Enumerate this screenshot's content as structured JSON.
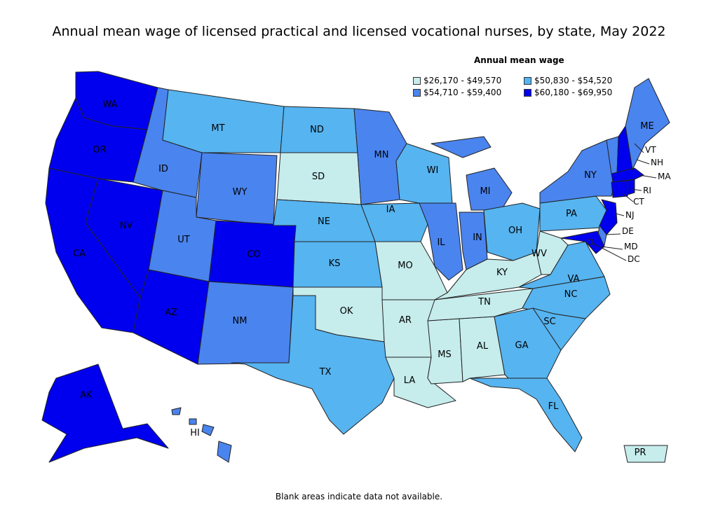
{
  "title": "Annual mean wage of licensed practical and licensed vocational nurses, by state, May 2022",
  "legend": {
    "title": "Annual mean wage",
    "bins": [
      {
        "label": "$26,170 - $49,570",
        "color": "#c6ecec"
      },
      {
        "label": "$50,830 - $54,520",
        "color": "#56b4f0"
      },
      {
        "label": "$54,710 - $59,400",
        "color": "#4a84ee"
      },
      {
        "label": "$60,180 - $69,950",
        "color": "#0000ee"
      }
    ]
  },
  "states": {
    "WA": 3,
    "OR": 3,
    "CA": 3,
    "NV": 3,
    "AZ": 3,
    "CO": 3,
    "AK": 3,
    "NH": 3,
    "MA": 3,
    "CT": 3,
    "RI": 3,
    "NJ": 3,
    "MD": 3,
    "DC": 3,
    "ID": 2,
    "UT": 2,
    "WY": 2,
    "NM": 2,
    "MN": 2,
    "IL": 2,
    "IN": 2,
    "MI": 2,
    "NY": 2,
    "ME": 2,
    "VT": 2,
    "HI": 2,
    "DE": 2,
    "MT": 1,
    "ND": 1,
    "NE": 1,
    "KS": 1,
    "IA": 1,
    "WI": 1,
    "OH": 1,
    "PA": 1,
    "VA": 1,
    "NC": 1,
    "SC": 1,
    "GA": 1,
    "FL": 1,
    "TX": 1,
    "SD": 0,
    "OK": 0,
    "MO": 0,
    "AR": 0,
    "LA": 0,
    "MS": 0,
    "AL": 0,
    "TN": 0,
    "KY": 0,
    "WV": 0,
    "PR": 0
  },
  "footnote": "Blank areas indicate data not available."
}
